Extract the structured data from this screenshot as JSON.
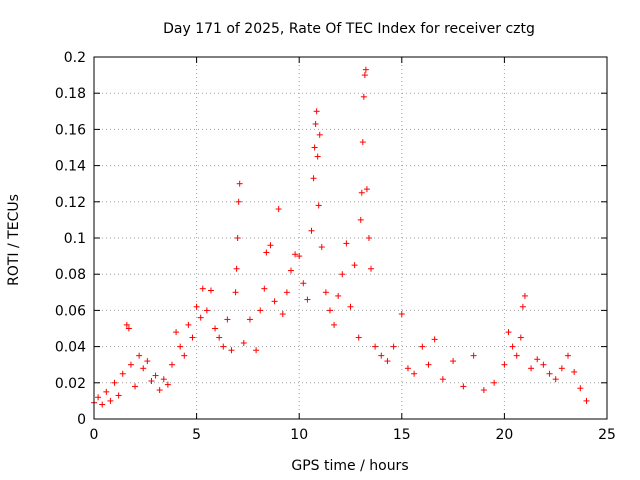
{
  "chart_data": {
    "type": "scatter",
    "title": "Day 171 of 2025, Rate Of TEC Index for receiver cztg",
    "xlabel": "GPS time / hours",
    "ylabel": "ROTI / TECUs",
    "xlim": [
      0,
      25
    ],
    "ylim": [
      0,
      0.2
    ],
    "x_ticks": [
      "0",
      "5",
      "10",
      "15",
      "20",
      "25"
    ],
    "y_ticks": [
      "0",
      "0.02",
      "0.04",
      "0.06",
      "0.08",
      "0.1",
      "0.12",
      "0.14",
      "0.16",
      "0.18",
      "0.2"
    ],
    "grid": true,
    "marker": "+",
    "colors": {
      "points": "#ff0000",
      "grid": "#a0a0a0",
      "axes": "#000000"
    },
    "series": [
      {
        "points": [
          [
            0.0,
            0.009
          ],
          [
            0.2,
            0.012
          ],
          [
            0.4,
            0.008
          ],
          [
            0.6,
            0.015
          ],
          [
            0.8,
            0.01
          ],
          [
            1.0,
            0.02
          ],
          [
            1.2,
            0.013
          ],
          [
            1.4,
            0.025
          ],
          [
            1.6,
            0.052
          ],
          [
            1.7,
            0.05
          ],
          [
            1.8,
            0.03
          ],
          [
            2.0,
            0.018
          ],
          [
            2.2,
            0.035
          ],
          [
            2.4,
            0.028
          ],
          [
            2.6,
            0.032
          ],
          [
            2.8,
            0.021
          ],
          [
            3.0,
            0.024
          ],
          [
            3.2,
            0.016
          ],
          [
            3.4,
            0.022
          ],
          [
            3.6,
            0.019
          ],
          [
            3.8,
            0.03
          ],
          [
            4.0,
            0.048
          ],
          [
            4.2,
            0.04
          ],
          [
            4.4,
            0.035
          ],
          [
            4.6,
            0.052
          ],
          [
            4.8,
            0.045
          ],
          [
            5.0,
            0.062
          ],
          [
            5.2,
            0.056
          ],
          [
            5.3,
            0.072
          ],
          [
            5.5,
            0.06
          ],
          [
            5.7,
            0.071
          ],
          [
            5.9,
            0.05
          ],
          [
            6.1,
            0.045
          ],
          [
            6.3,
            0.04
          ],
          [
            6.5,
            0.055
          ],
          [
            6.7,
            0.038
          ],
          [
            6.9,
            0.07
          ],
          [
            6.95,
            0.083
          ],
          [
            7.0,
            0.1
          ],
          [
            7.05,
            0.12
          ],
          [
            7.1,
            0.13
          ],
          [
            7.3,
            0.042
          ],
          [
            7.6,
            0.055
          ],
          [
            7.9,
            0.038
          ],
          [
            8.1,
            0.06
          ],
          [
            8.3,
            0.072
          ],
          [
            8.4,
            0.092
          ],
          [
            8.6,
            0.096
          ],
          [
            8.8,
            0.065
          ],
          [
            9.0,
            0.116
          ],
          [
            9.2,
            0.058
          ],
          [
            9.4,
            0.07
          ],
          [
            9.6,
            0.082
          ],
          [
            9.8,
            0.091
          ],
          [
            10.0,
            0.09
          ],
          [
            10.2,
            0.075
          ],
          [
            10.4,
            0.066
          ],
          [
            10.6,
            0.104
          ],
          [
            10.7,
            0.133
          ],
          [
            10.75,
            0.15
          ],
          [
            10.8,
            0.163
          ],
          [
            10.85,
            0.17
          ],
          [
            10.9,
            0.145
          ],
          [
            10.95,
            0.118
          ],
          [
            11.0,
            0.157
          ],
          [
            11.1,
            0.095
          ],
          [
            11.3,
            0.07
          ],
          [
            11.5,
            0.06
          ],
          [
            11.7,
            0.052
          ],
          [
            11.9,
            0.068
          ],
          [
            12.1,
            0.08
          ],
          [
            12.3,
            0.097
          ],
          [
            12.5,
            0.062
          ],
          [
            12.7,
            0.085
          ],
          [
            12.9,
            0.045
          ],
          [
            13.0,
            0.11
          ],
          [
            13.05,
            0.125
          ],
          [
            13.1,
            0.153
          ],
          [
            13.15,
            0.178
          ],
          [
            13.2,
            0.19
          ],
          [
            13.25,
            0.193
          ],
          [
            13.3,
            0.127
          ],
          [
            13.4,
            0.1
          ],
          [
            13.5,
            0.083
          ],
          [
            13.7,
            0.04
          ],
          [
            14.0,
            0.035
          ],
          [
            14.3,
            0.032
          ],
          [
            14.6,
            0.04
          ],
          [
            15.0,
            0.058
          ],
          [
            15.3,
            0.028
          ],
          [
            15.6,
            0.025
          ],
          [
            16.0,
            0.04
          ],
          [
            16.3,
            0.03
          ],
          [
            16.6,
            0.044
          ],
          [
            17.0,
            0.022
          ],
          [
            17.5,
            0.032
          ],
          [
            18.0,
            0.018
          ],
          [
            18.5,
            0.035
          ],
          [
            19.0,
            0.016
          ],
          [
            19.5,
            0.02
          ],
          [
            20.0,
            0.03
          ],
          [
            20.2,
            0.048
          ],
          [
            20.4,
            0.04
          ],
          [
            20.6,
            0.035
          ],
          [
            20.8,
            0.045
          ],
          [
            20.9,
            0.062
          ],
          [
            21.0,
            0.068
          ],
          [
            21.3,
            0.028
          ],
          [
            21.6,
            0.033
          ],
          [
            21.9,
            0.03
          ],
          [
            22.2,
            0.025
          ],
          [
            22.5,
            0.022
          ],
          [
            22.8,
            0.028
          ],
          [
            23.1,
            0.035
          ],
          [
            23.4,
            0.026
          ],
          [
            23.7,
            0.017
          ],
          [
            24.0,
            0.01
          ]
        ]
      }
    ]
  }
}
